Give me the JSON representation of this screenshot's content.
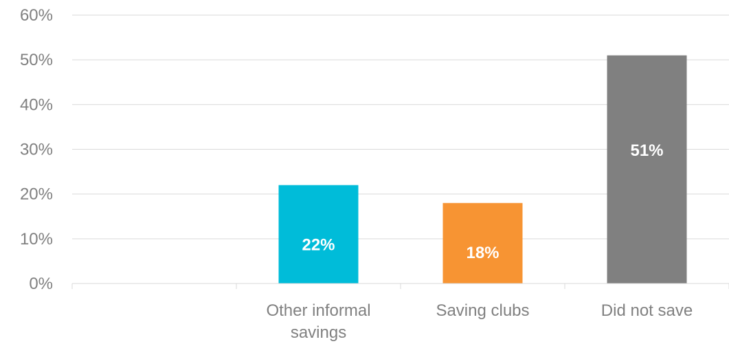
{
  "chart_data": {
    "type": "bar",
    "categories": [
      [
        ""
      ],
      [
        "Other informal",
        "savings"
      ],
      [
        "Saving clubs"
      ],
      [
        "Did not save"
      ]
    ],
    "values": [
      null,
      22,
      18,
      51
    ],
    "data_labels": [
      "",
      "22%",
      "18%",
      "51%"
    ],
    "bar_colors": [
      "#ffffff",
      "#00bcd9",
      "#f79433",
      "#808080"
    ],
    "ylim": [
      0,
      60
    ],
    "yticks": [
      0,
      10,
      20,
      30,
      40,
      50,
      60
    ],
    "ytick_labels": [
      "0%",
      "10%",
      "20%",
      "30%",
      "40%",
      "50%",
      "60%"
    ],
    "grid": true,
    "legend": "none"
  }
}
